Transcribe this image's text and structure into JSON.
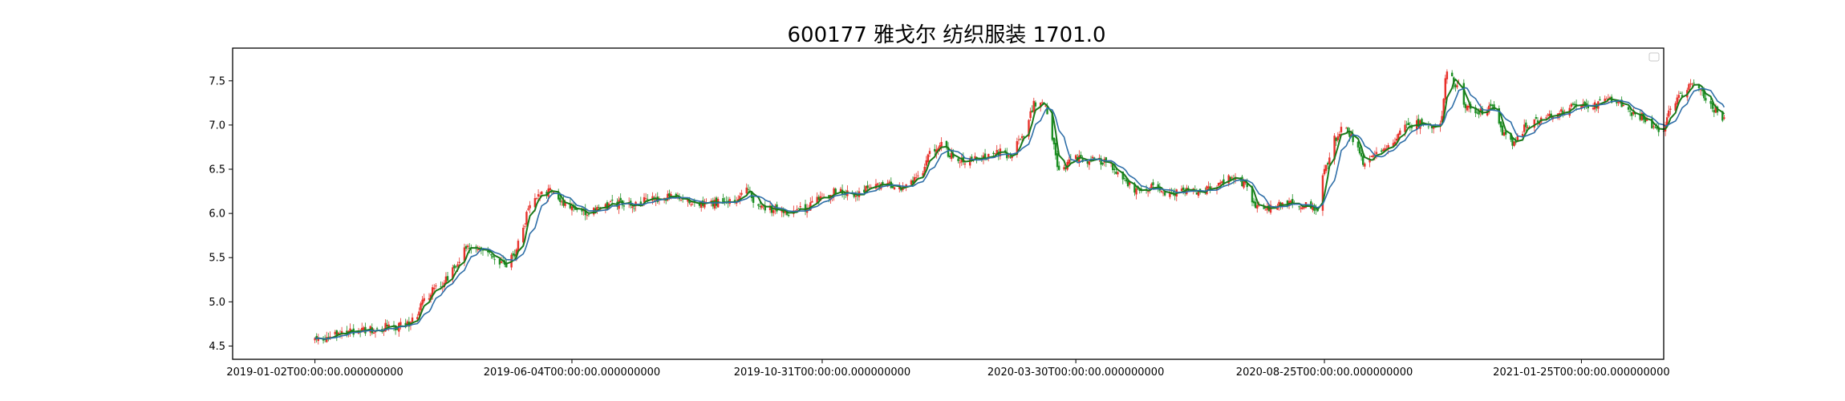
{
  "chart_data": {
    "type": "candlestick",
    "title": "600177 雅戈尔 纺织服装 1701.0",
    "xlabel": "",
    "ylabel": "",
    "ylim": [
      4.35,
      7.87
    ],
    "x_range": [
      "2018-11-14",
      "2021-03-15"
    ],
    "legend": {
      "placement": "top-right",
      "entries": []
    },
    "grid": false,
    "up_color": "#e8302a",
    "down_color": "#1b8f22",
    "y_ticks": [
      {
        "value": 4.5,
        "label": "4.5"
      },
      {
        "value": 5.0,
        "label": "5.0"
      },
      {
        "value": 5.5,
        "label": "5.5"
      },
      {
        "value": 6.0,
        "label": "6.0"
      },
      {
        "value": 6.5,
        "label": "6.5"
      },
      {
        "value": 7.0,
        "label": "7.0"
      },
      {
        "value": 7.5,
        "label": "7.5"
      }
    ],
    "x_ticks": [
      {
        "date": "2019-01-02",
        "label": "2019-01-02T00:00:00.000000000"
      },
      {
        "date": "2019-06-04",
        "label": "2019-06-04T00:00:00.000000000"
      },
      {
        "date": "2019-10-31",
        "label": "2019-10-31T00:00:00.000000000"
      },
      {
        "date": "2020-03-30",
        "label": "2020-03-30T00:00:00.000000000"
      },
      {
        "date": "2020-08-25",
        "label": "2020-08-25T00:00:00.000000000"
      },
      {
        "date": "2021-01-25",
        "label": "2021-01-25T00:00:00.000000000"
      }
    ],
    "price_path": [
      [
        "2019-01-02",
        4.55
      ],
      [
        "2019-01-10",
        4.62
      ],
      [
        "2019-01-20",
        4.67
      ],
      [
        "2019-02-01",
        4.68
      ],
      [
        "2019-02-15",
        4.72
      ],
      [
        "2019-02-25",
        4.73
      ],
      [
        "2019-03-01",
        4.78
      ],
      [
        "2019-03-08",
        5.0
      ],
      [
        "2019-03-15",
        5.15
      ],
      [
        "2019-03-22",
        5.25
      ],
      [
        "2019-03-28",
        5.45
      ],
      [
        "2019-04-02",
        5.6
      ],
      [
        "2019-04-10",
        5.63
      ],
      [
        "2019-04-16",
        5.55
      ],
      [
        "2019-04-22",
        5.45
      ],
      [
        "2019-04-26",
        5.42
      ],
      [
        "2019-05-01",
        5.55
      ],
      [
        "2019-05-06",
        5.85
      ],
      [
        "2019-05-10",
        6.1
      ],
      [
        "2019-05-16",
        6.2
      ],
      [
        "2019-05-22",
        6.25
      ],
      [
        "2019-05-28",
        6.15
      ],
      [
        "2019-06-04",
        6.05
      ],
      [
        "2019-06-12",
        6.02
      ],
      [
        "2019-06-20",
        6.05
      ],
      [
        "2019-07-01",
        6.12
      ],
      [
        "2019-07-10",
        6.1
      ],
      [
        "2019-07-20",
        6.15
      ],
      [
        "2019-08-01",
        6.18
      ],
      [
        "2019-08-10",
        6.15
      ],
      [
        "2019-08-20",
        6.13
      ],
      [
        "2019-09-01",
        6.12
      ],
      [
        "2019-09-10",
        6.13
      ],
      [
        "2019-09-16",
        6.33
      ],
      [
        "2019-09-22",
        6.1
      ],
      [
        "2019-10-01",
        6.05
      ],
      [
        "2019-10-10",
        6.0
      ],
      [
        "2019-10-20",
        6.05
      ],
      [
        "2019-10-31",
        6.2
      ],
      [
        "2019-11-10",
        6.25
      ],
      [
        "2019-11-20",
        6.22
      ],
      [
        "2019-11-30",
        6.3
      ],
      [
        "2019-12-10",
        6.32
      ],
      [
        "2019-12-20",
        6.3
      ],
      [
        "2019-12-28",
        6.4
      ],
      [
        "2020-01-03",
        6.7
      ],
      [
        "2020-01-10",
        6.78
      ],
      [
        "2020-01-16",
        6.65
      ],
      [
        "2020-01-22",
        6.58
      ],
      [
        "2020-02-03",
        6.62
      ],
      [
        "2020-02-12",
        6.7
      ],
      [
        "2020-02-20",
        6.65
      ],
      [
        "2020-02-28",
        6.9
      ],
      [
        "2020-03-06",
        7.25
      ],
      [
        "2020-03-12",
        7.2
      ],
      [
        "2020-03-16",
        6.85
      ],
      [
        "2020-03-20",
        6.45
      ],
      [
        "2020-03-26",
        6.58
      ],
      [
        "2020-03-30",
        6.62
      ],
      [
        "2020-04-08",
        6.6
      ],
      [
        "2020-04-18",
        6.58
      ],
      [
        "2020-04-28",
        6.35
      ],
      [
        "2020-05-06",
        6.25
      ],
      [
        "2020-05-14",
        6.3
      ],
      [
        "2020-05-24",
        6.2
      ],
      [
        "2020-06-02",
        6.25
      ],
      [
        "2020-06-12",
        6.25
      ],
      [
        "2020-06-22",
        6.3
      ],
      [
        "2020-06-30",
        6.42
      ],
      [
        "2020-07-08",
        6.35
      ],
      [
        "2020-07-14",
        6.1
      ],
      [
        "2020-07-22",
        6.05
      ],
      [
        "2020-08-01",
        6.12
      ],
      [
        "2020-08-08",
        6.1
      ],
      [
        "2020-08-16",
        6.08
      ],
      [
        "2020-08-20",
        6.0
      ],
      [
        "2020-08-25",
        6.5
      ],
      [
        "2020-08-31",
        6.85
      ],
      [
        "2020-09-06",
        7.0
      ],
      [
        "2020-09-12",
        6.8
      ],
      [
        "2020-09-18",
        6.55
      ],
      [
        "2020-09-24",
        6.65
      ],
      [
        "2020-10-02",
        6.75
      ],
      [
        "2020-10-10",
        6.95
      ],
      [
        "2020-10-18",
        7.02
      ],
      [
        "2020-10-26",
        7.0
      ],
      [
        "2020-11-02",
        7.02
      ],
      [
        "2020-11-06",
        7.62
      ],
      [
        "2020-11-12",
        7.45
      ],
      [
        "2020-11-18",
        7.2
      ],
      [
        "2020-11-26",
        7.15
      ],
      [
        "2020-12-04",
        7.2
      ],
      [
        "2020-12-10",
        6.9
      ],
      [
        "2020-12-16",
        6.8
      ],
      [
        "2020-12-24",
        7.0
      ],
      [
        "2021-01-04",
        7.1
      ],
      [
        "2021-01-12",
        7.15
      ],
      [
        "2021-01-20",
        7.2
      ],
      [
        "2021-01-25",
        7.25
      ],
      [
        "2021-02-01",
        7.22
      ],
      [
        "2021-02-08",
        7.3
      ],
      [
        "2021-02-15",
        7.25
      ],
      [
        "2021-02-22",
        7.15
      ],
      [
        "2021-03-01",
        7.1
      ],
      [
        "2021-03-08",
        7.0
      ],
      [
        "2021-03-14",
        6.95
      ],
      [
        "2021-03-20",
        7.2
      ],
      [
        "2021-03-26",
        7.35
      ],
      [
        "2021-04-01",
        7.45
      ],
      [
        "2021-04-06",
        7.4
      ],
      [
        "2021-04-12",
        7.2
      ],
      [
        "2021-04-20",
        7.08
      ]
    ]
  }
}
